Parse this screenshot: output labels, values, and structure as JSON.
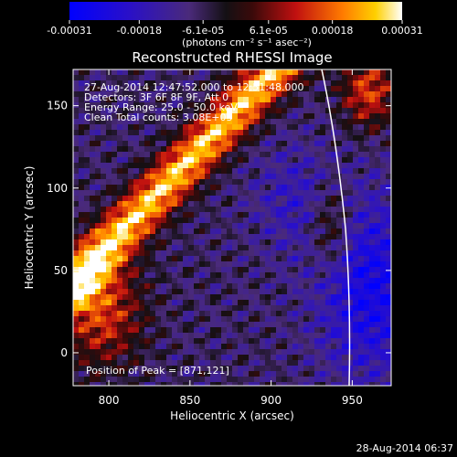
{
  "colorbar": {
    "tick_labels": [
      "-0.00031",
      "-0.00018",
      "-6.1e-05",
      "6.1e-05",
      "0.00018",
      "0.00031"
    ],
    "tick_values": [
      -0.00031,
      -0.00018,
      -6.1e-05,
      6.1e-05,
      0.00018,
      0.00031
    ],
    "range": [
      -0.00031,
      0.00031
    ],
    "unit_label": "(photons cm⁻² s⁻¹ asec⁻²)"
  },
  "image": {
    "title": "Reconstructed RHESSI Image",
    "info_lines": [
      "27-Aug-2014 12:47:52.000 to 12:51:48.000",
      "Detectors: 3F 6F 8F 9F, Att 0",
      "Energy Range: 25.0 - 50.0 keV",
      "Clean    Total counts: 3.08E+03"
    ],
    "peak_text": "Position of Peak = [871,121]",
    "peak": {
      "x": 871,
      "y": 121
    }
  },
  "axes": {
    "xlabel": "Heliocentric X (arcsec)",
    "ylabel": "Heliocentric Y (arcsec)",
    "x_ticks": [
      800,
      850,
      900,
      950
    ],
    "y_ticks": [
      0,
      50,
      100,
      150
    ],
    "xlim": [
      778,
      974
    ],
    "ylim": [
      -20,
      172
    ]
  },
  "footer": {
    "timestamp": "28-Aug-2014 06:37"
  }
}
